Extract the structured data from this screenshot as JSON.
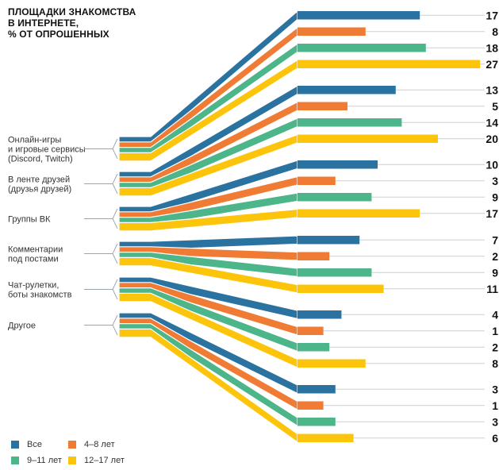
{
  "title_lines": [
    "ПЛОЩАДКИ ЗНАКОМСТВА",
    "В ИНТЕРНЕТЕ,",
    "% ОТ ОПРОШЕННЫХ"
  ],
  "colors": {
    "Все": "#2a72a0",
    "4–8 лет": "#f07b34",
    "9–11 лет": "#4cb58a",
    "12–17 лет": "#fcc40b"
  },
  "chart_data": {
    "type": "bar",
    "title": "ПЛОЩАДКИ ЗНАКОМСТВА В ИНТЕРНЕТЕ, % ОТ ОПРОШЕННЫХ",
    "legend": "bottom-left",
    "grid": false,
    "categories": [
      "Онлайн-игры и игровые сервисы (Discord, Twitch)",
      "В ленте друзей (друзья друзей)",
      "Группы ВК",
      "Комментарии под постами",
      "Чат-рулетки, боты знакомств",
      "Другое"
    ],
    "category_label_lines": [
      [
        "Онлайн-игры",
        "и игровые сервисы",
        "(Discord, Twitch)"
      ],
      [
        "В ленте друзей",
        "(друзья друзей)"
      ],
      [
        "Группы ВК"
      ],
      [
        "Комментарии",
        "под постами"
      ],
      [
        "Чат-рулетки,",
        "боты знакомств"
      ],
      [
        "Другое"
      ]
    ],
    "series": [
      {
        "name": "Все",
        "values": [
          17,
          13,
          10,
          7,
          4,
          3
        ]
      },
      {
        "name": "4–8 лет",
        "values": [
          8,
          5,
          3,
          2,
          1,
          1
        ]
      },
      {
        "name": "9–11 лет",
        "values": [
          18,
          14,
          9,
          9,
          2,
          3
        ]
      },
      {
        "name": "12–17 лет",
        "values": [
          27,
          20,
          17,
          11,
          8,
          6
        ]
      }
    ]
  }
}
